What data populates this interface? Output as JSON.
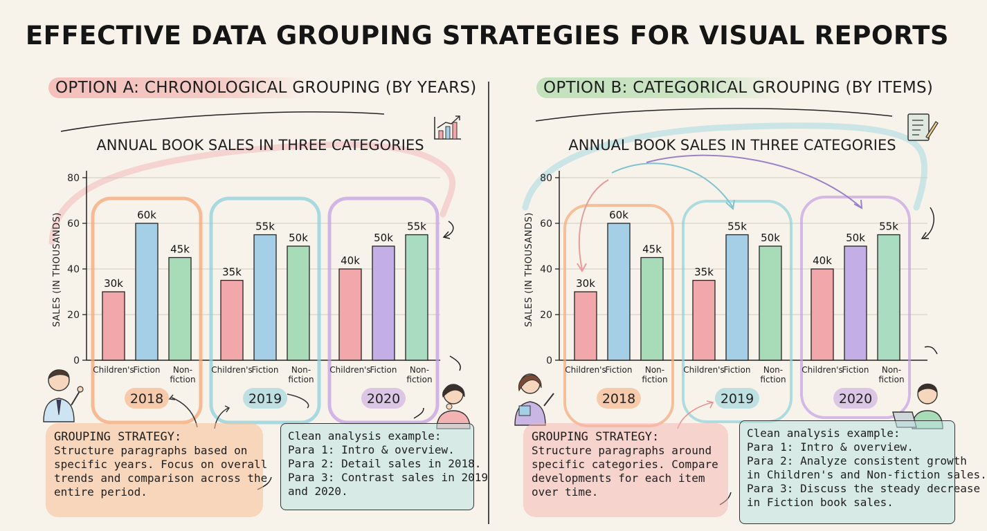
{
  "title": "EFFECTIVE DATA GROUPING STRATEGIES FOR VISUAL REPORTS",
  "option_a": {
    "prefix": "OPTION A:",
    "rest": " CHRONOLOGICAL GROUPING (BY YEARS)",
    "strategy_heading": "GROUPING STRATEGY:",
    "strategy_lines": [
      "Structure paragraphs based on",
      "specific years. Focus on overall",
      "trends and comparison across the",
      "entire period."
    ],
    "example_lines": [
      "Clean analysis example:",
      "Para 1: Intro & overview.",
      "Para 2: Detail sales in 2018.",
      "Para 3: Contrast sales in 2019",
      "and 2020."
    ]
  },
  "option_b": {
    "prefix": "OPTION B:",
    "rest": " CATEGORICAL GROUPING (BY ITEMS)",
    "strategy_heading": "GROUPING STRATEGY:",
    "strategy_lines": [
      "Structure paragraphs around",
      "specific categories. Compare",
      "developments for each item",
      "over time."
    ],
    "example_lines": [
      "Clean analysis example:",
      "Para 1: Intro & overview.",
      "Para 2: Analyze consistent growth",
      "in Children's and Non-fiction sales.",
      "Para 3: Discuss the steady decrease",
      "in Fiction book sales."
    ]
  },
  "colors": {
    "childrens": "#f2a7ab",
    "fiction": "#a5cfe6",
    "nonfiction": "#a8dcb8",
    "year_2018": "#f5a878",
    "year_2019": "#8fd0dc",
    "year_2020": "#c4a0e2",
    "fiction_2020": "#c3aee6",
    "nonfiction_2020": "#a9dcc0"
  },
  "icons": [
    "growth-chart-icon",
    "checklist-pencil-icon",
    "teacher-pointing-icon",
    "thinking-student-icon",
    "woman-presenting-icon",
    "student-laptop-icon"
  ],
  "chart_data": [
    {
      "type": "bar",
      "title": "ANNUAL BOOK SALES IN THREE CATEGORIES",
      "ylabel": "SALES (IN THOUSANDS)",
      "ylim": [
        0,
        80
      ],
      "yticks": [
        0,
        20,
        40,
        60,
        80
      ],
      "grid": true,
      "groups": [
        {
          "year": "2018",
          "bars": [
            {
              "category": [
                "Children's"
              ],
              "value": 30,
              "label": "30k"
            },
            {
              "category": [
                "Fiction"
              ],
              "value": 60,
              "label": "60k"
            },
            {
              "category": [
                "Non-",
                "fiction"
              ],
              "value": 45,
              "label": "45k"
            }
          ]
        },
        {
          "year": "2019",
          "bars": [
            {
              "category": [
                "Children's"
              ],
              "value": 35,
              "label": "35k"
            },
            {
              "category": [
                "Fiction"
              ],
              "value": 55,
              "label": "55k"
            },
            {
              "category": [
                "Non-",
                "fiction"
              ],
              "value": 50,
              "label": "50k"
            }
          ]
        },
        {
          "year": "2020",
          "bars": [
            {
              "category": [
                "Children's"
              ],
              "value": 40,
              "label": "40k"
            },
            {
              "category": [
                "Fiction"
              ],
              "value": 50,
              "label": "50k"
            },
            {
              "category": [
                "Non-",
                "fiction"
              ],
              "value": 55,
              "label": "55k"
            }
          ]
        }
      ]
    },
    {
      "type": "bar",
      "title": "ANNUAL BOOK SALES IN THREE CATEGORIES",
      "ylabel": "SALES (IN THOUSANDS)",
      "ylim": [
        0,
        80
      ],
      "yticks": [
        0,
        20,
        40,
        60,
        80
      ],
      "grid": true,
      "groups": [
        {
          "year": "2018",
          "bars": [
            {
              "category": [
                "Children's"
              ],
              "value": 30,
              "label": "30k"
            },
            {
              "category": [
                "Fiction"
              ],
              "value": 60,
              "label": "60k"
            },
            {
              "category": [
                "Non-",
                "fiction"
              ],
              "value": 45,
              "label": "45k"
            }
          ]
        },
        {
          "year": "2019",
          "bars": [
            {
              "category": [
                "Children's"
              ],
              "value": 35,
              "label": "35k"
            },
            {
              "category": [
                "Fiction"
              ],
              "value": 55,
              "label": "55k"
            },
            {
              "category": [
                "Non-",
                "fiction"
              ],
              "value": 50,
              "label": "50k"
            }
          ]
        },
        {
          "year": "2020",
          "bars": [
            {
              "category": [
                "Children's"
              ],
              "value": 40,
              "label": "40k"
            },
            {
              "category": [
                "Fiction"
              ],
              "value": 50,
              "label": "50k"
            },
            {
              "category": [
                "Non-",
                "fiction"
              ],
              "value": 55,
              "label": "55k"
            }
          ]
        }
      ]
    }
  ]
}
